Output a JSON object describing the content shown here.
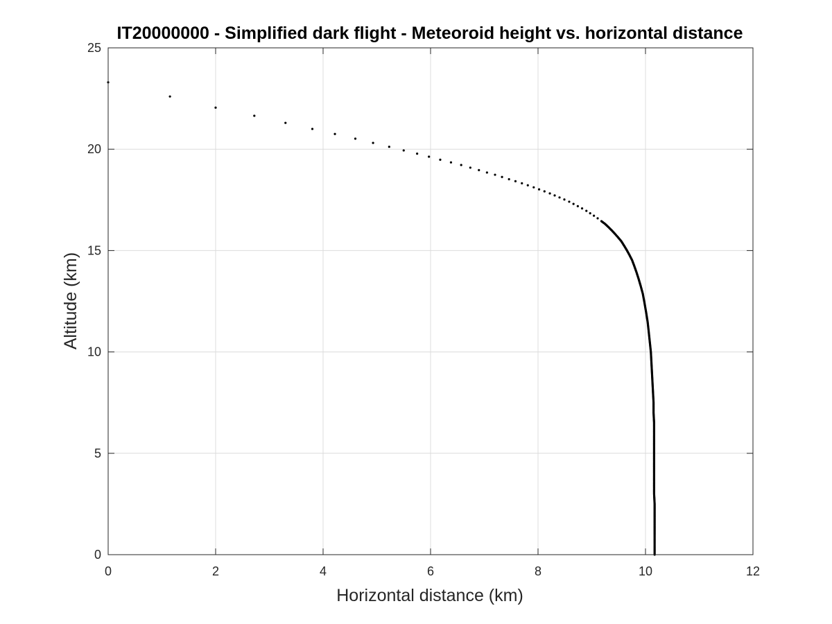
{
  "chart_data": {
    "type": "scatter",
    "title": "IT20000000 - Simplified dark flight - Meteoroid height vs. horizontal distance",
    "xlabel": "Horizontal distance (km)",
    "ylabel": "Altitude (km)",
    "xlim": [
      0,
      12
    ],
    "ylim": [
      0,
      25
    ],
    "xticks": [
      "0",
      "2",
      "4",
      "6",
      "8",
      "10",
      "12"
    ],
    "yticks": [
      "0",
      "5",
      "10",
      "15",
      "20",
      "25"
    ],
    "grid": true,
    "marker_color": "#000000",
    "series": [
      {
        "x": [
          0.0,
          1.15,
          2.0,
          2.72,
          3.3,
          3.8,
          4.22,
          4.6,
          4.93,
          5.23,
          5.5,
          5.75,
          5.97,
          6.18,
          6.38,
          6.57,
          6.74,
          6.9,
          7.05,
          7.2,
          7.33,
          7.46,
          7.58,
          7.7,
          7.81,
          7.92,
          8.02,
          8.12,
          8.22,
          8.31,
          8.4,
          8.49,
          8.58,
          8.66,
          8.74,
          8.82,
          8.9,
          8.97,
          9.04,
          9.11,
          9.18,
          9.25,
          9.31,
          9.37,
          9.43,
          9.49,
          9.55,
          9.6,
          9.65,
          9.7,
          9.75,
          9.79,
          9.83,
          9.87,
          9.91,
          9.95,
          9.98,
          10.01,
          10.04,
          10.06,
          10.08,
          10.1,
          10.11,
          10.12,
          10.13,
          10.14,
          10.15,
          10.15,
          10.16,
          10.16,
          10.16,
          10.16,
          10.16,
          10.16,
          10.16,
          10.16,
          10.17,
          10.17,
          10.17,
          10.17,
          10.17,
          10.17,
          10.17,
          10.17,
          10.17,
          10.17,
          10.17,
          10.17
        ],
        "y": [
          23.3,
          22.6,
          22.05,
          21.65,
          21.3,
          21.0,
          20.75,
          20.52,
          20.31,
          20.12,
          19.94,
          19.78,
          19.63,
          19.48,
          19.35,
          19.22,
          19.09,
          18.97,
          18.85,
          18.74,
          18.63,
          18.52,
          18.42,
          18.32,
          18.22,
          18.12,
          18.02,
          17.92,
          17.82,
          17.72,
          17.62,
          17.52,
          17.41,
          17.3,
          17.19,
          17.08,
          16.96,
          16.84,
          16.72,
          16.59,
          16.45,
          16.31,
          16.16,
          16.0,
          15.83,
          15.65,
          15.46,
          15.25,
          15.03,
          14.79,
          14.53,
          14.25,
          13.95,
          13.62,
          13.26,
          12.87,
          12.44,
          11.98,
          11.48,
          11.0,
          10.5,
          10.0,
          9.5,
          9.0,
          8.5,
          8.0,
          7.5,
          7.0,
          6.5,
          6.0,
          5.5,
          5.0,
          4.5,
          4.0,
          3.5,
          3.0,
          2.5,
          2.0,
          1.5,
          1.0,
          0.8,
          0.6,
          0.5,
          0.4,
          0.3,
          0.2,
          0.1,
          0.0
        ]
      }
    ]
  }
}
